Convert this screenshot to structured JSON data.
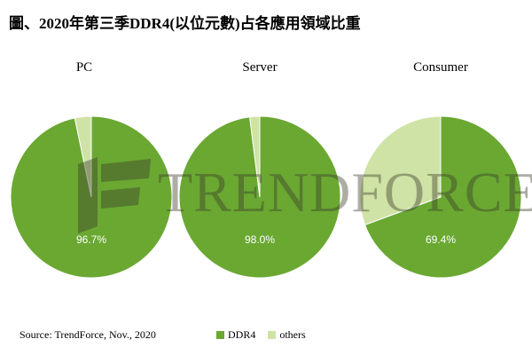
{
  "title": "圖、2020年第三季DDR4(以位元數)占各應用領域比重",
  "source": "Source: TrendForce, Nov., 2020",
  "watermark": "TRENDFORCE",
  "colors": {
    "ddr4": "#6aa832",
    "others": "#cfe3a6",
    "slice_label": "#ffffff",
    "title": "#000000"
  },
  "legend": [
    {
      "name": "DDR4",
      "color": "#6aa832"
    },
    {
      "name": "others",
      "color": "#cfe3a6"
    }
  ],
  "chart_data": [
    {
      "type": "pie",
      "title": "PC",
      "slices": [
        {
          "name": "DDR4",
          "value": 96.7,
          "label": "96.7%"
        },
        {
          "name": "others",
          "value": 3.3
        }
      ]
    },
    {
      "type": "pie",
      "title": "Server",
      "slices": [
        {
          "name": "DDR4",
          "value": 98.0,
          "label": "98.0%"
        },
        {
          "name": "others",
          "value": 2.0
        }
      ]
    },
    {
      "type": "pie",
      "title": "Consumer",
      "slices": [
        {
          "name": "DDR4",
          "value": 69.4,
          "label": "69.4%"
        },
        {
          "name": "others",
          "value": 30.6
        }
      ]
    }
  ]
}
